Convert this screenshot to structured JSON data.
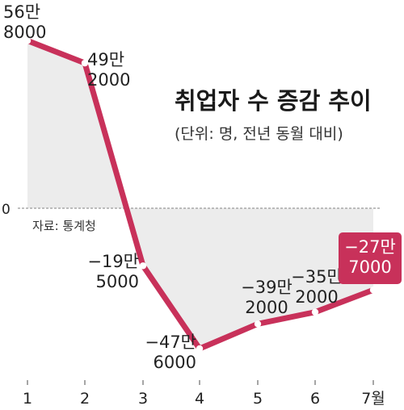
{
  "chart_data": {
    "type": "line",
    "title": "취업자 수 증감 추이",
    "subtitle": "(단위: 명, 전년 동월 대비)",
    "source": "자료: 통계청",
    "x": [
      "1",
      "2",
      "3",
      "4",
      "5",
      "6",
      "7월"
    ],
    "values": [
      568000,
      492000,
      -195000,
      -476000,
      -392000,
      -352000,
      -277000
    ],
    "value_labels": [
      [
        "56만",
        "8000"
      ],
      [
        "49만",
        "2000"
      ],
      [
        "−19만",
        "5000"
      ],
      [
        "−47만",
        "6000"
      ],
      [
        "−39만",
        "2000"
      ],
      [
        "−35만",
        "2000"
      ],
      [
        "−27만",
        "7000"
      ]
    ],
    "zero_label": "0",
    "highlight_index": 6,
    "colors": {
      "line": "#c8315a",
      "fill": "#ececec",
      "highlight_box": "#c8315a",
      "axis": "#888888"
    },
    "grid": false,
    "legend": "none"
  }
}
